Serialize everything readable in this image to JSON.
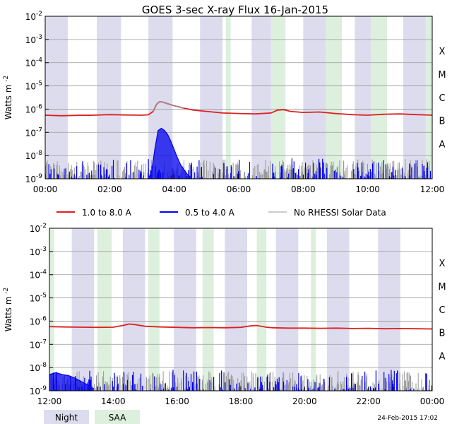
{
  "title": "GOES 3-sec X-ray Flux   16-Jan-2015",
  "ylabel_main": "Watts m",
  "ylabel_exp": "-2",
  "footer_stamp": "24-Feb-2015 17:02",
  "legend": {
    "long": "1.0 to 8.0 A",
    "short": "0.5 to 4.0 A",
    "nodata": "No RHESSI Solar Data",
    "night": "Night",
    "saa": "SAA"
  },
  "colors": {
    "long": "#dd2020",
    "short": "#0000ee",
    "nodata": "#999999",
    "night": "#dcdcee",
    "saa": "#ddefdd"
  },
  "chart_data": [
    {
      "type": "line",
      "panel": "top",
      "x_unit": "hours UT",
      "xlim": [
        0,
        12
      ],
      "x_ticks": [
        "00:00",
        "02:00",
        "04:00",
        "06:00",
        "08:00",
        "10:00",
        "12:00"
      ],
      "y_scale": "log",
      "ylim": [
        1e-09,
        0.01
      ],
      "y_ticks": [
        {
          "base": "10",
          "exp": "-2"
        },
        {
          "base": "10",
          "exp": "-3"
        },
        {
          "base": "10",
          "exp": "-4"
        },
        {
          "base": "10",
          "exp": "-5"
        },
        {
          "base": "10",
          "exp": "-6"
        },
        {
          "base": "10",
          "exp": "-7"
        },
        {
          "base": "10",
          "exp": "-8"
        },
        {
          "base": "10",
          "exp": "-9"
        }
      ],
      "flare_classes": [
        {
          "label": "X",
          "value": 0.0001
        },
        {
          "label": "M",
          "value": 1e-05
        },
        {
          "label": "C",
          "value": 1e-06
        },
        {
          "label": "B",
          "value": 1e-07
        },
        {
          "label": "A",
          "value": 1e-08
        }
      ],
      "night": [
        [
          0.0,
          0.7
        ],
        [
          1.6,
          2.35
        ],
        [
          3.2,
          3.95
        ],
        [
          4.8,
          5.5
        ],
        [
          6.4,
          7.0
        ],
        [
          8.0,
          8.7
        ],
        [
          9.6,
          10.1
        ],
        [
          11.1,
          11.8
        ]
      ],
      "saa": [
        [
          5.6,
          5.75
        ],
        [
          7.0,
          7.45
        ],
        [
          8.7,
          9.2
        ],
        [
          10.1,
          10.6
        ],
        [
          11.8,
          12.0
        ]
      ],
      "series": [
        {
          "name": "1.0 to 8.0 A",
          "x": [
            0.0,
            0.5,
            1.0,
            1.5,
            2.0,
            2.5,
            3.0,
            3.2,
            3.35,
            3.45,
            3.55,
            3.65,
            3.8,
            4.0,
            4.3,
            4.6,
            5.0,
            5.5,
            6.0,
            6.5,
            7.0,
            7.2,
            7.4,
            7.6,
            8.0,
            8.5,
            9.0,
            9.5,
            10.0,
            10.5,
            11.0,
            11.5,
            12.0
          ],
          "y": [
            5.5e-07,
            5.2e-07,
            5.4e-07,
            5.5e-07,
            5.8e-07,
            5.6e-07,
            5.5e-07,
            5.7e-07,
            8e-07,
            1.6e-06,
            2.1e-06,
            2e-06,
            1.7e-06,
            1.4e-06,
            1.1e-06,
            9e-07,
            8e-07,
            6.8e-07,
            6.5e-07,
            6.2e-07,
            6.8e-07,
            9e-07,
            9.5e-07,
            8e-07,
            7.2e-07,
            7.5e-07,
            6.5e-07,
            5.8e-07,
            5.5e-07,
            6e-07,
            6.2e-07,
            5.8e-07,
            5.5e-07
          ]
        },
        {
          "name": "0.5 to 4.0 A",
          "x": [
            3.2,
            3.3,
            3.4,
            3.5,
            3.6,
            3.7,
            3.8,
            3.9,
            4.0,
            4.1,
            4.2,
            4.3,
            4.4,
            4.5
          ],
          "y": [
            1e-09,
            2e-09,
            2e-08,
            1.2e-07,
            1.5e-07,
            1.2e-07,
            8e-08,
            4e-08,
            1.8e-08,
            8e-09,
            4e-09,
            2.5e-09,
            1.6e-09,
            1.2e-09
          ]
        }
      ]
    },
    {
      "type": "line",
      "panel": "bottom",
      "x_unit": "hours UT",
      "xlim": [
        12,
        24
      ],
      "x_ticks": [
        "12:00",
        "14:00",
        "16:00",
        "18:00",
        "20:00",
        "22:00",
        "00:00"
      ],
      "y_scale": "log",
      "ylim": [
        1e-09,
        0.01
      ],
      "y_ticks": [
        {
          "base": "10",
          "exp": "-2"
        },
        {
          "base": "10",
          "exp": "-3"
        },
        {
          "base": "10",
          "exp": "-4"
        },
        {
          "base": "10",
          "exp": "-5"
        },
        {
          "base": "10",
          "exp": "-6"
        },
        {
          "base": "10",
          "exp": "-7"
        },
        {
          "base": "10",
          "exp": "-8"
        },
        {
          "base": "10",
          "exp": "-9"
        }
      ],
      "flare_classes": [
        {
          "label": "X",
          "value": 0.0001
        },
        {
          "label": "M",
          "value": 1e-05
        },
        {
          "label": "C",
          "value": 1e-06
        },
        {
          "label": "B",
          "value": 1e-07
        },
        {
          "label": "A",
          "value": 1e-08
        }
      ],
      "night": [
        [
          12.7,
          13.4
        ],
        [
          14.3,
          15.0
        ],
        [
          15.9,
          16.6
        ],
        [
          17.5,
          18.2
        ],
        [
          19.1,
          19.8
        ],
        [
          20.7,
          21.4
        ],
        [
          22.3,
          23.0
        ]
      ],
      "saa": [
        [
          12.0,
          12.15
        ],
        [
          13.5,
          13.95
        ],
        [
          15.1,
          15.45
        ],
        [
          16.8,
          17.15
        ],
        [
          18.5,
          18.8
        ],
        [
          20.2,
          20.35
        ]
      ],
      "series": [
        {
          "name": "1.0 to 8.0 A",
          "x": [
            12.0,
            12.5,
            13.0,
            13.5,
            14.0,
            14.3,
            14.5,
            14.7,
            15.0,
            15.5,
            16.0,
            16.5,
            17.0,
            17.5,
            18.0,
            18.3,
            18.5,
            18.8,
            19.0,
            19.5,
            20.0,
            20.5,
            21.0,
            21.5,
            22.0,
            22.5,
            23.0,
            23.5,
            24.0
          ],
          "y": [
            5.8e-07,
            5.6e-07,
            5.5e-07,
            5.4e-07,
            5.5e-07,
            6.5e-07,
            7.5e-07,
            7e-07,
            6e-07,
            5.6e-07,
            5.4e-07,
            5.2e-07,
            5.3e-07,
            5.2e-07,
            5.4e-07,
            6.2e-07,
            6.5e-07,
            5.5e-07,
            5.2e-07,
            5e-07,
            5e-07,
            4.9e-07,
            5e-07,
            4.8e-07,
            4.9e-07,
            4.7e-07,
            4.8e-07,
            4.7e-07,
            4.6e-07
          ]
        },
        {
          "name": "0.5 to 4.0 A",
          "x": [
            12.0,
            12.2,
            12.4,
            12.6,
            12.8,
            13.0,
            13.2,
            13.4
          ],
          "y": [
            5e-09,
            6e-09,
            5e-09,
            4.5e-09,
            3.5e-09,
            2.5e-09,
            1.8e-09,
            1.2e-09
          ]
        }
      ]
    }
  ]
}
